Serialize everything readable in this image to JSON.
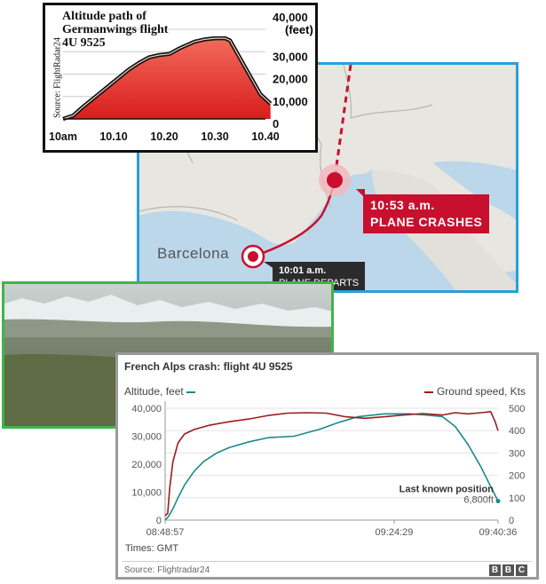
{
  "map": {
    "city_label": "Barcelona",
    "crash_time": "10:53 a.m.",
    "crash_text": "PLANE CRASHES",
    "depart_time": "10:01 a.m.",
    "depart_text": "PLANE DEPARTS",
    "colors": {
      "route": "#c8102e",
      "border": "#2a9fd8",
      "sea": "#bcd6ea",
      "land": "#e8e6e1"
    }
  },
  "photo": {
    "border_color": "#3fb54a"
  },
  "chart_data": [
    {
      "type": "area",
      "title": "Altitude path of Germanwings flight 4U 9525",
      "source": "Source: FlightRadar24",
      "ylabel": "(feet)",
      "xlabel": "",
      "x_ticks": [
        "10am",
        "10.10",
        "10.20",
        "10.30",
        "10.40"
      ],
      "y_ticks": [
        "40,000",
        "30,000",
        "20,000",
        "10,000",
        "0"
      ],
      "x_range_minutes": [
        0,
        40
      ],
      "ylim": [
        0,
        40000
      ],
      "series": [
        {
          "values": [
            {
              "x": 0,
              "y": 0
            },
            {
              "x": 2,
              "y": 1500
            },
            {
              "x": 4,
              "y": 5500
            },
            {
              "x": 7,
              "y": 11000
            },
            {
              "x": 10,
              "y": 16500
            },
            {
              "x": 13,
              "y": 22000
            },
            {
              "x": 15,
              "y": 25000
            },
            {
              "x": 17,
              "y": 27500
            },
            {
              "x": 19,
              "y": 28500
            },
            {
              "x": 21,
              "y": 29000
            },
            {
              "x": 23,
              "y": 31500
            },
            {
              "x": 26,
              "y": 34500
            },
            {
              "x": 28,
              "y": 35500
            },
            {
              "x": 30,
              "y": 36000
            },
            {
              "x": 32,
              "y": 36000
            },
            {
              "x": 33,
              "y": 35000
            },
            {
              "x": 35,
              "y": 27000
            },
            {
              "x": 37,
              "y": 19000
            },
            {
              "x": 39,
              "y": 11000
            },
            {
              "x": 41,
              "y": 6800
            }
          ]
        }
      ],
      "colors": {
        "fill_top": "#f26b5b",
        "fill_bottom": "#d91d1d",
        "line": "#111111"
      }
    },
    {
      "type": "line",
      "title": "French Alps crash: flight 4U 9525",
      "left_axis_label": "Altitude, feet",
      "right_axis_label": "Ground speed, Kts",
      "times_label": "Times: GMT",
      "source": "Source: Flightradar24",
      "brand": [
        "B",
        "B",
        "C"
      ],
      "x_ticks": [
        "08:48:57",
        "09:24:29",
        "09:40:36"
      ],
      "x_range_minutes": [
        0,
        51.65
      ],
      "x_tick_positions_minutes": [
        0,
        35.53,
        51.65
      ],
      "y_left_ticks": [
        "40,000",
        "30,000",
        "20,000",
        "10,000",
        "0"
      ],
      "y_right_ticks": [
        "500",
        "400",
        "300",
        "200",
        "100",
        "0"
      ],
      "ylim_left": [
        0,
        40000
      ],
      "ylim_right": [
        0,
        500
      ],
      "annotation": {
        "title": "Last known position",
        "value": "6,800ft"
      },
      "series": [
        {
          "axis": "left",
          "color": "#1a8a8a",
          "values": [
            {
              "x": 0,
              "y": 0
            },
            {
              "x": 0.5,
              "y": 1200
            },
            {
              "x": 1.2,
              "y": 4000
            },
            {
              "x": 2,
              "y": 8000
            },
            {
              "x": 3,
              "y": 12500
            },
            {
              "x": 4.5,
              "y": 17500
            },
            {
              "x": 6,
              "y": 21000
            },
            {
              "x": 8,
              "y": 24000
            },
            {
              "x": 10,
              "y": 26000
            },
            {
              "x": 13,
              "y": 28000
            },
            {
              "x": 16,
              "y": 29500
            },
            {
              "x": 20,
              "y": 30000
            },
            {
              "x": 24,
              "y": 32500
            },
            {
              "x": 27,
              "y": 35000
            },
            {
              "x": 30,
              "y": 37000
            },
            {
              "x": 34,
              "y": 38000
            },
            {
              "x": 38,
              "y": 38000
            },
            {
              "x": 41,
              "y": 37500
            },
            {
              "x": 43,
              "y": 37000
            },
            {
              "x": 45,
              "y": 33500
            },
            {
              "x": 47,
              "y": 27000
            },
            {
              "x": 49,
              "y": 19000
            },
            {
              "x": 50.5,
              "y": 12000
            },
            {
              "x": 51.65,
              "y": 6800
            }
          ]
        },
        {
          "axis": "right",
          "color": "#9b1c1c",
          "values": [
            {
              "x": 0,
              "y": 20
            },
            {
              "x": 0.4,
              "y": 30
            },
            {
              "x": 0.7,
              "y": 140
            },
            {
              "x": 1.2,
              "y": 260
            },
            {
              "x": 2,
              "y": 345
            },
            {
              "x": 3,
              "y": 385
            },
            {
              "x": 4.5,
              "y": 405
            },
            {
              "x": 7,
              "y": 425
            },
            {
              "x": 10,
              "y": 440
            },
            {
              "x": 13,
              "y": 452
            },
            {
              "x": 16,
              "y": 468
            },
            {
              "x": 19,
              "y": 478
            },
            {
              "x": 22,
              "y": 480
            },
            {
              "x": 25,
              "y": 478
            },
            {
              "x": 28,
              "y": 462
            },
            {
              "x": 31,
              "y": 455
            },
            {
              "x": 34,
              "y": 462
            },
            {
              "x": 37,
              "y": 470
            },
            {
              "x": 40,
              "y": 476
            },
            {
              "x": 43,
              "y": 470
            },
            {
              "x": 45,
              "y": 480
            },
            {
              "x": 47,
              "y": 475
            },
            {
              "x": 49,
              "y": 480
            },
            {
              "x": 50.5,
              "y": 485
            },
            {
              "x": 51.2,
              "y": 440
            },
            {
              "x": 51.65,
              "y": 400
            }
          ]
        }
      ]
    }
  ]
}
